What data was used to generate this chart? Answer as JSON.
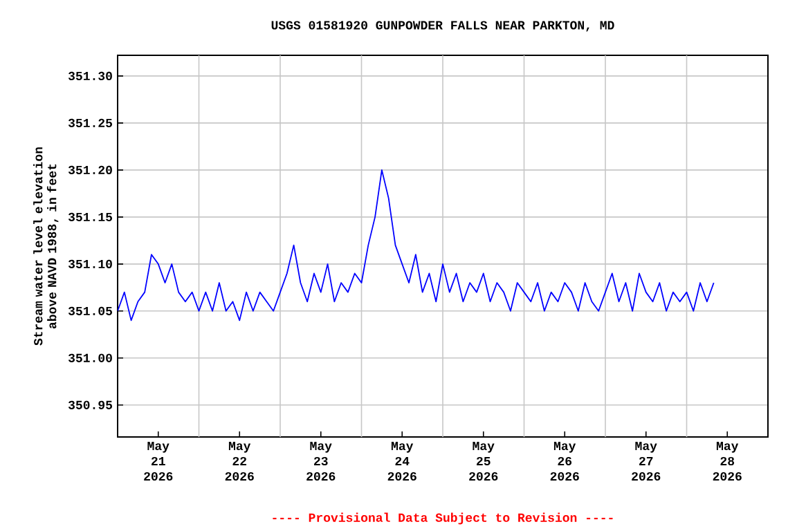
{
  "chart_data": {
    "type": "line",
    "title": "USGS 01581920 GUNPOWDER FALLS NEAR PARKTON, MD",
    "ylabel": "Stream water level elevation above NAVD 1988, in feet",
    "annotations": [
      "---- Provisional Data Subject to Revision ----"
    ],
    "x": [
      "2026-05-21T00:00",
      "2026-05-21T02:00",
      "2026-05-21T04:00",
      "2026-05-21T06:00",
      "2026-05-21T08:00",
      "2026-05-21T10:00",
      "2026-05-21T12:00",
      "2026-05-21T14:00",
      "2026-05-21T16:00",
      "2026-05-21T18:00",
      "2026-05-21T20:00",
      "2026-05-21T22:00",
      "2026-05-22T00:00",
      "2026-05-22T02:00",
      "2026-05-22T04:00",
      "2026-05-22T06:00",
      "2026-05-22T08:00",
      "2026-05-22T10:00",
      "2026-05-22T12:00",
      "2026-05-22T14:00",
      "2026-05-22T16:00",
      "2026-05-22T18:00",
      "2026-05-22T20:00",
      "2026-05-22T22:00",
      "2026-05-23T00:00",
      "2026-05-23T02:00",
      "2026-05-23T04:00",
      "2026-05-23T06:00",
      "2026-05-23T08:00",
      "2026-05-23T10:00",
      "2026-05-23T12:00",
      "2026-05-23T14:00",
      "2026-05-23T16:00",
      "2026-05-23T18:00",
      "2026-05-23T20:00",
      "2026-05-23T22:00",
      "2026-05-24T00:00",
      "2026-05-24T02:00",
      "2026-05-24T04:00",
      "2026-05-24T06:00",
      "2026-05-24T08:00",
      "2026-05-24T10:00",
      "2026-05-24T12:00",
      "2026-05-24T14:00",
      "2026-05-24T16:00",
      "2026-05-24T18:00",
      "2026-05-24T20:00",
      "2026-05-24T22:00",
      "2026-05-25T00:00",
      "2026-05-25T02:00",
      "2026-05-25T04:00",
      "2026-05-25T06:00",
      "2026-05-25T08:00",
      "2026-05-25T10:00",
      "2026-05-25T12:00",
      "2026-05-25T14:00",
      "2026-05-25T16:00",
      "2026-05-25T18:00",
      "2026-05-25T20:00",
      "2026-05-25T22:00",
      "2026-05-26T00:00",
      "2026-05-26T02:00",
      "2026-05-26T04:00",
      "2026-05-26T06:00",
      "2026-05-26T08:00",
      "2026-05-26T10:00",
      "2026-05-26T12:00",
      "2026-05-26T14:00",
      "2026-05-26T16:00",
      "2026-05-26T18:00",
      "2026-05-26T20:00",
      "2026-05-26T22:00",
      "2026-05-27T00:00",
      "2026-05-27T02:00",
      "2026-05-27T04:00",
      "2026-05-27T06:00",
      "2026-05-27T08:00",
      "2026-05-27T10:00",
      "2026-05-27T12:00",
      "2026-05-27T14:00",
      "2026-05-27T16:00",
      "2026-05-27T18:00",
      "2026-05-27T20:00",
      "2026-05-27T22:00",
      "2026-05-28T00:00",
      "2026-05-28T02:00",
      "2026-05-28T04:00",
      "2026-05-28T06:00",
      "2026-05-28T08:00"
    ],
    "values": [
      351.05,
      351.07,
      351.04,
      351.06,
      351.07,
      351.11,
      351.1,
      351.08,
      351.1,
      351.07,
      351.06,
      351.07,
      351.05,
      351.07,
      351.05,
      351.08,
      351.05,
      351.06,
      351.04,
      351.07,
      351.05,
      351.07,
      351.06,
      351.05,
      351.07,
      351.09,
      351.12,
      351.08,
      351.06,
      351.09,
      351.07,
      351.1,
      351.06,
      351.08,
      351.07,
      351.09,
      351.08,
      351.12,
      351.15,
      351.2,
      351.17,
      351.12,
      351.1,
      351.08,
      351.11,
      351.07,
      351.09,
      351.06,
      351.1,
      351.07,
      351.09,
      351.06,
      351.08,
      351.07,
      351.09,
      351.06,
      351.08,
      351.07,
      351.05,
      351.08,
      351.07,
      351.06,
      351.08,
      351.05,
      351.07,
      351.06,
      351.08,
      351.07,
      351.05,
      351.08,
      351.06,
      351.05,
      351.07,
      351.09,
      351.06,
      351.08,
      351.05,
      351.09,
      351.07,
      351.06,
      351.08,
      351.05,
      351.07,
      351.06,
      351.07,
      351.05,
      351.08,
      351.06,
      351.08
    ],
    "color": "#0000ff",
    "xlim": [
      "2026-05-21T00:00",
      "2026-05-29T00:00"
    ],
    "xticks": [
      {
        "value": "2026-05-21T12:00",
        "label": "May 21 2026"
      },
      {
        "value": "2026-05-22T12:00",
        "label": "May 22 2026"
      },
      {
        "value": "2026-05-23T12:00",
        "label": "May 23 2026"
      },
      {
        "value": "2026-05-24T12:00",
        "label": "May 24 2026"
      },
      {
        "value": "2026-05-25T12:00",
        "label": "May 25 2026"
      },
      {
        "value": "2026-05-26T12:00",
        "label": "May 26 2026"
      },
      {
        "value": "2026-05-27T12:00",
        "label": "May 27 2026"
      },
      {
        "value": "2026-05-28T12:00",
        "label": "May 28 2026"
      },
      {
        "value": "2026-05-22T00:00",
        "label": null
      },
      {
        "value": "2026-05-23T00:00",
        "label": null
      },
      {
        "value": "2026-05-24T00:00",
        "label": null
      },
      {
        "value": "2026-05-25T00:00",
        "label": null
      },
      {
        "value": "2026-05-26T00:00",
        "label": null
      },
      {
        "value": "2026-05-27T00:00",
        "label": null
      },
      {
        "value": "2026-05-28T00:00",
        "label": null
      }
    ],
    "ylim": [
      350.916,
      351.322
    ],
    "yticks": [
      {
        "value": 350.95,
        "label": "350.95"
      },
      {
        "value": 351.0,
        "label": "351.00"
      },
      {
        "value": 351.05,
        "label": "351.05"
      },
      {
        "value": 351.1,
        "label": "351.10"
      },
      {
        "value": 351.15,
        "label": "351.15"
      },
      {
        "value": 351.2,
        "label": "351.20"
      },
      {
        "value": 351.25,
        "label": "351.25"
      },
      {
        "value": 351.3,
        "label": "351.30"
      }
    ],
    "grid": true,
    "marker": "none",
    "line_style": "solid"
  }
}
